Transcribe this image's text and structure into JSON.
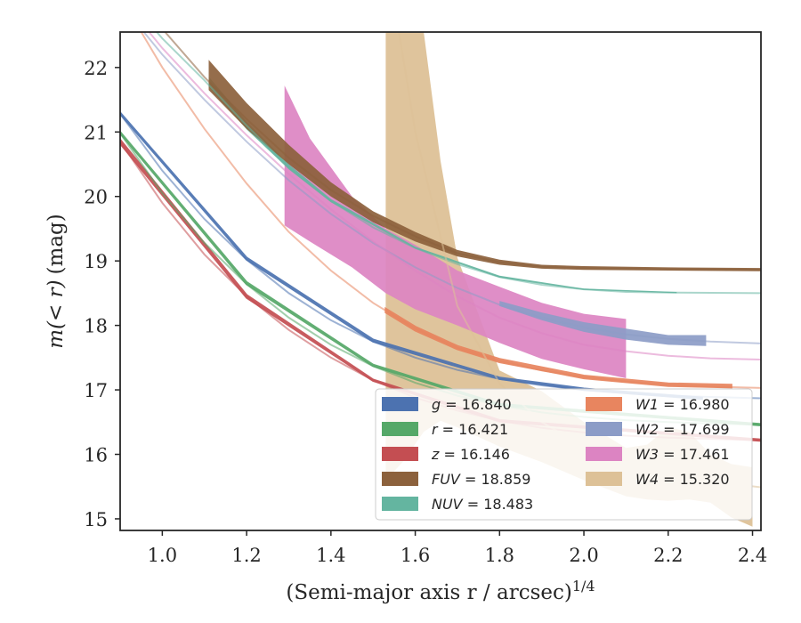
{
  "chart_data": {
    "type": "line",
    "xlabel": "(Semi-major axis r / arcsec)",
    "xlabel_exponent": "1/4",
    "ylabel_prefix": "m(< r)",
    "ylabel_suffix": "(mag)",
    "xlim": [
      0.9,
      2.42
    ],
    "ylim": [
      22.55,
      14.82
    ],
    "y_inverted": true,
    "xticks": [
      1.0,
      1.2,
      1.4,
      1.6,
      1.8,
      2.0,
      2.2,
      2.4
    ],
    "xtick_labels": [
      "1.0",
      "1.2",
      "1.4",
      "1.6",
      "1.8",
      "2.0",
      "2.2",
      "2.4"
    ],
    "yticks": [
      15,
      16,
      17,
      18,
      19,
      20,
      21,
      22
    ],
    "ytick_labels": [
      "15",
      "16",
      "17",
      "18",
      "19",
      "20",
      "21",
      "22"
    ],
    "grid": false,
    "legend_position": "lower-right",
    "series": [
      {
        "name": "g",
        "label_value": "= 16.840",
        "color": "#4c72b0",
        "model": [
          [
            0.9,
            21.28
          ],
          [
            1.0,
            20.4
          ],
          [
            1.1,
            19.65
          ],
          [
            1.2,
            19.02
          ],
          [
            1.3,
            18.5
          ],
          [
            1.4,
            18.08
          ],
          [
            1.5,
            17.75
          ],
          [
            1.6,
            17.5
          ],
          [
            1.7,
            17.31
          ],
          [
            1.8,
            17.17
          ],
          [
            1.9,
            17.07
          ],
          [
            2.0,
            17.0
          ],
          [
            2.1,
            16.95
          ],
          [
            2.2,
            16.91
          ],
          [
            2.3,
            16.89
          ],
          [
            2.42,
            16.87
          ]
        ],
        "band": [
          [
            0.9,
            21.28,
            21.3
          ],
          [
            1.2,
            19.02,
            19.05
          ],
          [
            1.5,
            17.75,
            17.78
          ],
          [
            1.8,
            17.17,
            17.19
          ],
          [
            2.0,
            17.0,
            17.02
          ],
          [
            2.28,
            16.86,
            16.88
          ]
        ],
        "band_x": [
          0.9,
          2.28
        ]
      },
      {
        "name": "r",
        "label_value": "= 16.421",
        "color": "#55a868",
        "model": [
          [
            0.9,
            20.98
          ],
          [
            1.0,
            20.05
          ],
          [
            1.1,
            19.28
          ],
          [
            1.2,
            18.64
          ],
          [
            1.3,
            18.12
          ],
          [
            1.4,
            17.7
          ],
          [
            1.5,
            17.37
          ],
          [
            1.6,
            17.11
          ],
          [
            1.7,
            16.91
          ],
          [
            1.8,
            16.76
          ],
          [
            1.9,
            16.65
          ],
          [
            2.0,
            16.58
          ],
          [
            2.1,
            16.53
          ],
          [
            2.2,
            16.5
          ],
          [
            2.3,
            16.48
          ],
          [
            2.42,
            16.46
          ]
        ],
        "band": [
          [
            0.9,
            20.98,
            21.0
          ],
          [
            1.2,
            18.64,
            18.67
          ],
          [
            1.5,
            17.37,
            17.39
          ],
          [
            1.8,
            16.76,
            16.78
          ],
          [
            2.42,
            16.45,
            16.47
          ]
        ],
        "band_x": [
          0.9,
          2.42
        ]
      },
      {
        "name": "z",
        "label_value": "= 16.146",
        "color": "#c44e52",
        "model": [
          [
            0.9,
            20.85
          ],
          [
            1.0,
            19.9
          ],
          [
            1.1,
            19.1
          ],
          [
            1.2,
            18.45
          ],
          [
            1.3,
            17.93
          ],
          [
            1.4,
            17.5
          ],
          [
            1.5,
            17.15
          ],
          [
            1.6,
            16.88
          ],
          [
            1.7,
            16.68
          ],
          [
            1.8,
            16.52
          ],
          [
            1.9,
            16.41
          ],
          [
            2.0,
            16.34
          ],
          [
            2.1,
            16.29
          ],
          [
            2.2,
            16.26
          ],
          [
            2.3,
            16.24
          ],
          [
            2.42,
            16.22
          ]
        ],
        "band": [
          [
            0.9,
            20.82,
            20.88
          ],
          [
            1.2,
            18.43,
            18.47
          ],
          [
            1.5,
            17.14,
            17.16
          ],
          [
            1.8,
            16.51,
            16.53
          ],
          [
            2.42,
            16.21,
            16.23
          ]
        ],
        "band_x": [
          0.9,
          2.42
        ]
      },
      {
        "name": "FUV",
        "label_value": "= 18.859",
        "color": "#8c613c",
        "model": [
          [
            0.9,
            23.5
          ],
          [
            1.0,
            22.6
          ],
          [
            1.1,
            21.85
          ],
          [
            1.2,
            21.2
          ],
          [
            1.3,
            20.6
          ],
          [
            1.4,
            20.1
          ],
          [
            1.5,
            19.7
          ],
          [
            1.6,
            19.38
          ],
          [
            1.7,
            19.12
          ],
          [
            1.8,
            18.98
          ],
          [
            1.9,
            18.91
          ],
          [
            2.0,
            18.89
          ],
          [
            2.2,
            18.87
          ],
          [
            2.42,
            18.86
          ]
        ],
        "band": [
          [
            1.11,
            21.65,
            22.12
          ],
          [
            1.2,
            21.05,
            21.45
          ],
          [
            1.3,
            20.5,
            20.8
          ],
          [
            1.4,
            20.0,
            20.22
          ],
          [
            1.5,
            19.6,
            19.77
          ],
          [
            1.6,
            19.3,
            19.45
          ],
          [
            1.7,
            19.07,
            19.17
          ],
          [
            1.8,
            18.94,
            19.02
          ],
          [
            1.9,
            18.88,
            18.94
          ],
          [
            2.0,
            18.86,
            18.92
          ],
          [
            2.2,
            18.85,
            18.9
          ],
          [
            2.42,
            18.84,
            18.89
          ]
        ],
        "band_x": [
          1.11,
          2.42
        ]
      },
      {
        "name": "NUV",
        "label_value": "= 18.483",
        "color": "#64b5a0",
        "model": [
          [
            0.9,
            23.2
          ],
          [
            1.0,
            22.45
          ],
          [
            1.1,
            21.8
          ],
          [
            1.2,
            21.1
          ],
          [
            1.3,
            20.45
          ],
          [
            1.4,
            19.93
          ],
          [
            1.5,
            19.52
          ],
          [
            1.6,
            19.2
          ],
          [
            1.7,
            18.95
          ],
          [
            1.8,
            18.75
          ],
          [
            1.9,
            18.63
          ],
          [
            2.0,
            18.56
          ],
          [
            2.1,
            18.52
          ],
          [
            2.2,
            18.51
          ],
          [
            2.42,
            18.5
          ]
        ],
        "band": [
          [
            1.11,
            21.7,
            21.86
          ],
          [
            1.2,
            21.04,
            21.16
          ],
          [
            1.3,
            20.42,
            20.5
          ],
          [
            1.4,
            19.91,
            19.96
          ],
          [
            1.6,
            19.19,
            19.22
          ],
          [
            1.8,
            18.74,
            18.77
          ],
          [
            2.0,
            18.55,
            18.57
          ],
          [
            2.22,
            18.5,
            18.52
          ]
        ],
        "band_x": [
          1.11,
          2.22
        ]
      },
      {
        "name": "W1",
        "label_value": "= 16.980",
        "color": "#e8855f",
        "model": [
          [
            0.9,
            23.1
          ],
          [
            1.0,
            22.0
          ],
          [
            1.1,
            21.05
          ],
          [
            1.2,
            20.2
          ],
          [
            1.3,
            19.45
          ],
          [
            1.4,
            18.85
          ],
          [
            1.5,
            18.35
          ],
          [
            1.6,
            17.95
          ],
          [
            1.7,
            17.65
          ],
          [
            1.8,
            17.45
          ],
          [
            1.9,
            17.3
          ],
          [
            2.0,
            17.2
          ],
          [
            2.1,
            17.13
          ],
          [
            2.2,
            17.08
          ],
          [
            2.3,
            17.05
          ],
          [
            2.42,
            17.03
          ]
        ],
        "band": [
          [
            1.53,
            18.2,
            18.26
          ],
          [
            1.6,
            17.92,
            17.98
          ],
          [
            1.7,
            17.63,
            17.68
          ],
          [
            1.8,
            17.43,
            17.48
          ],
          [
            2.0,
            17.18,
            17.22
          ],
          [
            2.2,
            17.06,
            17.1
          ],
          [
            2.35,
            17.04,
            17.08
          ]
        ],
        "band_x": [
          1.53,
          2.35
        ]
      },
      {
        "name": "W2",
        "label_value": "= 17.699",
        "color": "#8c9cc7",
        "model": [
          [
            0.9,
            23.0
          ],
          [
            1.0,
            22.2
          ],
          [
            1.1,
            21.5
          ],
          [
            1.2,
            20.85
          ],
          [
            1.3,
            20.25
          ],
          [
            1.4,
            19.73
          ],
          [
            1.5,
            19.28
          ],
          [
            1.6,
            18.9
          ],
          [
            1.7,
            18.58
          ],
          [
            1.8,
            18.32
          ],
          [
            1.9,
            18.12
          ],
          [
            2.0,
            17.97
          ],
          [
            2.1,
            17.86
          ],
          [
            2.2,
            17.79
          ],
          [
            2.3,
            17.75
          ],
          [
            2.42,
            17.72
          ]
        ],
        "band": [
          [
            1.8,
            18.3,
            18.38
          ],
          [
            1.9,
            18.08,
            18.2
          ],
          [
            2.0,
            17.9,
            18.05
          ],
          [
            2.1,
            17.78,
            17.95
          ],
          [
            2.2,
            17.7,
            17.85
          ],
          [
            2.29,
            17.68,
            17.85
          ]
        ],
        "band_x": [
          1.8,
          2.29
        ]
      },
      {
        "name": "W3",
        "label_value": "= 17.461",
        "color": "#dc84c2",
        "model": [
          [
            0.9,
            23.1
          ],
          [
            1.0,
            22.3
          ],
          [
            1.1,
            21.6
          ],
          [
            1.2,
            20.95
          ],
          [
            1.3,
            20.35
          ],
          [
            1.4,
            19.8
          ],
          [
            1.5,
            19.3
          ],
          [
            1.6,
            18.85
          ],
          [
            1.7,
            18.45
          ],
          [
            1.8,
            18.12
          ],
          [
            1.9,
            17.88
          ],
          [
            2.0,
            17.7
          ],
          [
            2.1,
            17.6
          ],
          [
            2.2,
            17.53
          ],
          [
            2.3,
            17.49
          ],
          [
            2.42,
            17.47
          ]
        ],
        "band": [
          [
            1.29,
            19.55,
            21.72
          ],
          [
            1.35,
            19.3,
            20.9
          ],
          [
            1.45,
            18.9,
            20.0
          ],
          [
            1.53,
            18.5,
            19.5
          ],
          [
            1.6,
            18.25,
            19.25
          ],
          [
            1.7,
            18.0,
            18.85
          ],
          [
            1.8,
            17.73,
            18.6
          ],
          [
            1.9,
            17.48,
            18.35
          ],
          [
            2.0,
            17.32,
            18.18
          ],
          [
            2.1,
            17.18,
            18.1
          ]
        ],
        "band_x": [
          1.29,
          2.1
        ]
      },
      {
        "name": "W4",
        "label_value": "= 15.320",
        "color": "#ddc197",
        "model": [
          [
            1.5,
            25.0
          ],
          [
            1.6,
            21.0
          ],
          [
            1.7,
            18.3
          ],
          [
            1.8,
            17.1
          ],
          [
            1.9,
            16.5
          ],
          [
            2.0,
            16.12
          ],
          [
            2.1,
            15.88
          ],
          [
            2.2,
            15.7
          ],
          [
            2.3,
            15.58
          ],
          [
            2.42,
            15.49
          ]
        ],
        "band": [
          [
            1.53,
            15.6,
            22.6
          ],
          [
            1.57,
            15.88,
            22.6
          ],
          [
            1.62,
            16.35,
            22.55
          ],
          [
            1.66,
            16.52,
            20.55
          ],
          [
            1.7,
            16.42,
            19.05
          ],
          [
            1.8,
            16.12,
            17.3
          ],
          [
            1.9,
            15.88,
            16.98
          ],
          [
            2.0,
            15.6,
            16.5
          ],
          [
            2.1,
            15.35,
            16.1
          ],
          [
            2.15,
            15.3,
            16.15
          ],
          [
            2.2,
            15.28,
            16.42
          ],
          [
            2.25,
            15.3,
            16.35
          ],
          [
            2.3,
            15.25,
            16.0
          ],
          [
            2.35,
            15.02,
            15.85
          ],
          [
            2.4,
            14.88,
            15.8
          ]
        ],
        "band_x": [
          1.53,
          2.4
        ]
      }
    ],
    "legend": {
      "columns": [
        [
          "g",
          "r",
          "z",
          "FUV",
          "NUV"
        ],
        [
          "W1",
          "W2",
          "W3",
          "W4"
        ]
      ]
    }
  }
}
